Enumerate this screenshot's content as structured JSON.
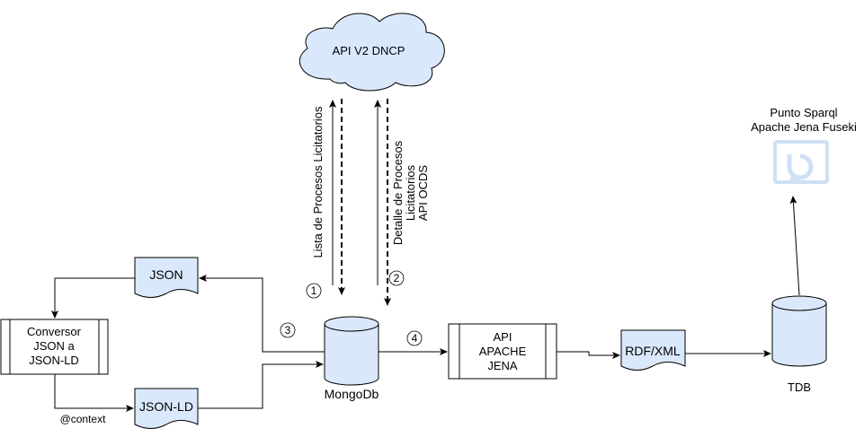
{
  "nodes": {
    "cloud": {
      "label": "API V2 DNCP",
      "fill": "#dae8fc"
    },
    "mongodb": {
      "label": "MongoDb"
    },
    "json_doc": {
      "label": "JSON"
    },
    "jsonld_doc": {
      "label": "JSON-LD"
    },
    "converter": {
      "lines": [
        "Conversor",
        "JSON a",
        "JSON-LD"
      ]
    },
    "api_jena": {
      "lines": [
        "API",
        "APACHE",
        "JENA"
      ]
    },
    "rdfxml_doc": {
      "label": "RDF/XML"
    },
    "tdb": {
      "label": "TDB"
    },
    "sparql": {
      "lines": [
        "Punto Sparql",
        "Apache Jena Fuseki"
      ],
      "icon_color": "#cfe0f5"
    }
  },
  "edge_labels": {
    "lista": "Lista de Procesos Licitatorios",
    "detalle": [
      "Detalle de Procesos",
      "Licitatorios",
      "API OCDS"
    ],
    "context": "@context"
  },
  "steps": [
    "1",
    "2",
    "3",
    "4"
  ]
}
